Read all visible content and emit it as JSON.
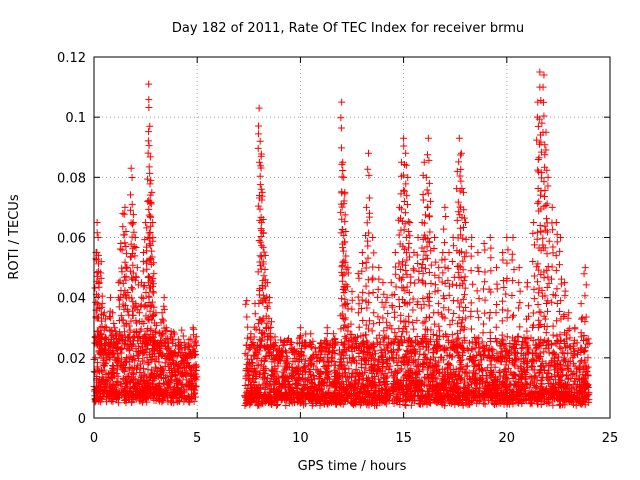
{
  "chart_data": {
    "type": "scatter",
    "title": "Day 182 of 2011, Rate Of TEC Index for receiver brmu",
    "xlabel": "GPS time / hours",
    "ylabel": "ROTI / TECUs",
    "xlim": [
      0,
      25
    ],
    "ylim": [
      0,
      0.12
    ],
    "xticks": [
      0,
      5,
      10,
      15,
      20,
      25
    ],
    "yticks": [
      0,
      0.02,
      0.04,
      0.06,
      0.08,
      0.1,
      0.12
    ],
    "xtick_labels": [
      "0",
      "5",
      "10",
      "15",
      "20",
      "25"
    ],
    "ytick_labels": [
      "0",
      "0.02",
      "0.04",
      "0.06",
      "0.08",
      "0.1",
      "0.12"
    ],
    "grid": true,
    "marker": "+",
    "color": "#ff0000",
    "series": [
      {
        "points": [
          [
            0.1,
            0.055
          ],
          [
            0.15,
            0.065
          ],
          [
            0.2,
            0.06
          ],
          [
            0.25,
            0.045
          ],
          [
            0.3,
            0.03
          ],
          [
            0.35,
            0.052
          ],
          [
            0.4,
            0.038
          ],
          [
            0.5,
            0.035
          ],
          [
            0.6,
            0.03
          ],
          [
            0.7,
            0.025
          ],
          [
            0.8,
            0.04
          ],
          [
            0.9,
            0.035
          ],
          [
            1.0,
            0.03
          ],
          [
            1.1,
            0.028
          ],
          [
            1.2,
            0.045
          ],
          [
            1.3,
            0.058
          ],
          [
            1.4,
            0.068
          ],
          [
            1.5,
            0.07
          ],
          [
            1.55,
            0.062
          ],
          [
            1.6,
            0.05
          ],
          [
            1.7,
            0.04
          ],
          [
            1.8,
            0.083
          ],
          [
            1.85,
            0.071
          ],
          [
            1.9,
            0.065
          ],
          [
            2.0,
            0.06
          ],
          [
            2.1,
            0.05
          ],
          [
            2.2,
            0.035
          ],
          [
            2.3,
            0.045
          ],
          [
            2.4,
            0.055
          ],
          [
            2.5,
            0.065
          ],
          [
            2.6,
            0.072
          ],
          [
            2.65,
            0.111
          ],
          [
            2.7,
            0.097
          ],
          [
            2.75,
            0.079
          ],
          [
            2.8,
            0.075
          ],
          [
            2.85,
            0.06
          ],
          [
            2.9,
            0.048
          ],
          [
            3.0,
            0.035
          ],
          [
            3.1,
            0.025
          ],
          [
            3.2,
            0.028
          ],
          [
            3.3,
            0.035
          ],
          [
            3.4,
            0.04
          ],
          [
            3.5,
            0.03
          ],
          [
            3.6,
            0.025
          ],
          [
            3.7,
            0.022
          ],
          [
            3.8,
            0.02
          ],
          [
            4.0,
            0.018
          ],
          [
            4.2,
            0.015
          ],
          [
            4.4,
            0.02
          ],
          [
            4.6,
            0.026
          ],
          [
            4.8,
            0.03
          ],
          [
            4.9,
            0.025
          ],
          [
            7.4,
            0.039
          ],
          [
            7.6,
            0.028
          ],
          [
            7.8,
            0.038
          ],
          [
            8.0,
            0.103
          ],
          [
            8.05,
            0.092
          ],
          [
            8.1,
            0.087
          ],
          [
            8.15,
            0.075
          ],
          [
            8.2,
            0.066
          ],
          [
            8.3,
            0.054
          ],
          [
            8.4,
            0.045
          ],
          [
            8.5,
            0.04
          ],
          [
            8.6,
            0.032
          ],
          [
            8.8,
            0.025
          ],
          [
            9.0,
            0.02
          ],
          [
            9.3,
            0.018
          ],
          [
            9.6,
            0.022
          ],
          [
            10.0,
            0.03
          ],
          [
            10.2,
            0.025
          ],
          [
            10.5,
            0.028
          ],
          [
            10.8,
            0.02
          ],
          [
            11.0,
            0.025
          ],
          [
            11.3,
            0.03
          ],
          [
            11.6,
            0.028
          ],
          [
            12.0,
            0.105
          ],
          [
            12.05,
            0.085
          ],
          [
            12.1,
            0.08
          ],
          [
            12.15,
            0.075
          ],
          [
            12.2,
            0.062
          ],
          [
            12.3,
            0.05
          ],
          [
            12.5,
            0.042
          ],
          [
            12.8,
            0.048
          ],
          [
            13.0,
            0.055
          ],
          [
            13.2,
            0.07
          ],
          [
            13.3,
            0.088
          ],
          [
            13.5,
            0.06
          ],
          [
            13.8,
            0.05
          ],
          [
            14.0,
            0.045
          ],
          [
            14.2,
            0.04
          ],
          [
            14.4,
            0.045
          ],
          [
            14.6,
            0.055
          ],
          [
            14.8,
            0.07
          ],
          [
            14.9,
            0.085
          ],
          [
            15.0,
            0.093
          ],
          [
            15.1,
            0.088
          ],
          [
            15.2,
            0.08
          ],
          [
            15.3,
            0.065
          ],
          [
            15.5,
            0.055
          ],
          [
            15.7,
            0.06
          ],
          [
            15.9,
            0.065
          ],
          [
            16.0,
            0.085
          ],
          [
            16.1,
            0.08
          ],
          [
            16.2,
            0.093
          ],
          [
            16.3,
            0.072
          ],
          [
            16.5,
            0.06
          ],
          [
            16.7,
            0.05
          ],
          [
            16.9,
            0.055
          ],
          [
            17.0,
            0.07
          ],
          [
            17.2,
            0.055
          ],
          [
            17.4,
            0.06
          ],
          [
            17.6,
            0.082
          ],
          [
            17.7,
            0.093
          ],
          [
            17.8,
            0.088
          ],
          [
            17.9,
            0.075
          ],
          [
            18.0,
            0.065
          ],
          [
            18.3,
            0.06
          ],
          [
            18.6,
            0.055
          ],
          [
            18.9,
            0.058
          ],
          [
            19.2,
            0.06
          ],
          [
            19.5,
            0.05
          ],
          [
            19.8,
            0.055
          ],
          [
            20.0,
            0.06
          ],
          [
            20.3,
            0.06
          ],
          [
            20.6,
            0.05
          ],
          [
            21.0,
            0.045
          ],
          [
            21.3,
            0.065
          ],
          [
            21.5,
            0.105
          ],
          [
            21.6,
            0.115
          ],
          [
            21.7,
            0.098
          ],
          [
            21.8,
            0.114
          ],
          [
            21.9,
            0.095
          ],
          [
            22.0,
            0.08
          ],
          [
            22.2,
            0.07
          ],
          [
            22.4,
            0.065
          ],
          [
            22.6,
            0.06
          ],
          [
            22.8,
            0.045
          ],
          [
            23.0,
            0.035
          ],
          [
            23.3,
            0.03
          ],
          [
            23.6,
            0.038
          ],
          [
            23.8,
            0.05
          ]
        ]
      }
    ],
    "density_regions": [
      {
        "x": [
          0.0,
          5.0
        ],
        "y_range": [
          0.005,
          0.03
        ]
      },
      {
        "x": [
          7.3,
          24.0
        ],
        "y_range": [
          0.004,
          0.028
        ]
      }
    ]
  }
}
